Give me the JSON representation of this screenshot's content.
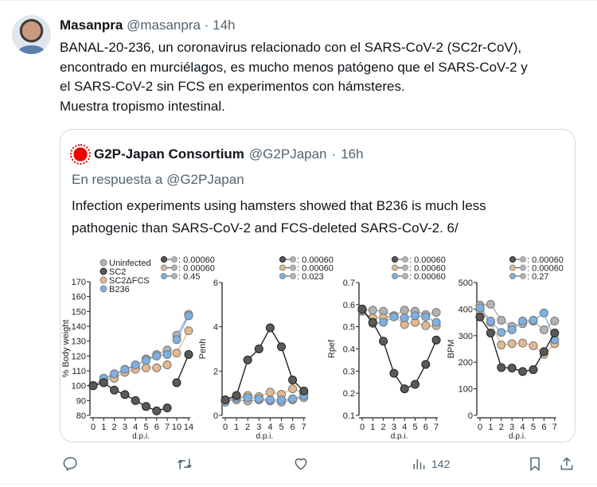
{
  "tweet": {
    "author_name": "Masanpra",
    "author_handle": "@masanpra",
    "separator": "·",
    "time": "14h",
    "text_lines": [
      "BANAL-20-236, un coronavirus relacionado con el SARS-CoV-2 (SC2r-CoV),",
      "encontrado en murciélagos, es mucho menos patógeno que el SARS-CoV-2 y",
      "el SARS-CoV-2 sin FCS en experimentos con hámsteres.",
      "Muestra tropismo intestinal."
    ]
  },
  "quoted": {
    "author_name": "G2P-Japan Consortium",
    "author_handle": "@G2PJapan",
    "separator": "·",
    "time": "16h",
    "reply_to": "En respuesta a @G2PJapan",
    "text_lines": [
      "Infection experiments using hamsters showed that B236 is much less",
      "pathogenic than SARS-CoV-2 and FCS-deleted SARS-CoV-2. 6/"
    ]
  },
  "actions": {
    "reply_icon": "speech-bubble-icon",
    "retweet_icon": "retweet-arrows-icon",
    "like_icon": "heart-icon",
    "views_icon": "bar-chart-icon",
    "views_count": "142",
    "bookmark_icon": "bookmark-icon",
    "share_icon": "upload-share-icon"
  },
  "chart_data": [
    {
      "type": "line",
      "ylabel": "% Body weight",
      "xlabel": "d.p.i.",
      "x": [
        0,
        1,
        2,
        3,
        4,
        5,
        6,
        7,
        10,
        14
      ],
      "x_tick_labels": [
        "0",
        "1",
        "2",
        "3",
        "4",
        "5",
        "6",
        "7",
        "10",
        "14"
      ],
      "ylim": [
        80,
        170
      ],
      "y_ticks": [
        80,
        90,
        100,
        110,
        120,
        130,
        140,
        150,
        160,
        170
      ],
      "legend": [
        "Uninfected",
        "SC2",
        "SC2ΔFCS",
        "B236"
      ],
      "p_values": [
        "0.00060",
        "0.00060",
        "0.45"
      ],
      "series": [
        {
          "name": "Uninfected",
          "color": "#b3b3b3",
          "values": [
            100,
            105,
            107,
            111,
            113,
            118,
            121,
            124,
            134,
            148
          ]
        },
        {
          "name": "SC2",
          "color": "#5a5a5a",
          "values": [
            100,
            102,
            97,
            94,
            90,
            86,
            83,
            85,
            102,
            121
          ]
        },
        {
          "name": "SC2ΔFCS",
          "color": "#e2b98f",
          "values": [
            100,
            104,
            105,
            109,
            111,
            112,
            112,
            114,
            122,
            137
          ]
        },
        {
          "name": "B236",
          "color": "#7db0e3",
          "values": [
            100,
            105,
            108,
            111,
            114,
            117,
            120,
            121,
            131,
            147
          ]
        }
      ]
    },
    {
      "type": "line",
      "ylabel": "Penh",
      "xlabel": "d.p.i.",
      "x": [
        0,
        1,
        2,
        3,
        4,
        5,
        6,
        7
      ],
      "x_tick_labels": [
        "0",
        "1",
        "2",
        "3",
        "4",
        "5",
        "6",
        "7"
      ],
      "ylim": [
        0,
        6
      ],
      "y_ticks": [
        0,
        2,
        4,
        6
      ],
      "p_values": [
        "0.00060",
        "0.00060",
        "0.023"
      ],
      "series": [
        {
          "name": "Uninfected",
          "color": "#b3b3b3",
          "values": [
            0.65,
            0.7,
            0.65,
            0.7,
            0.65,
            0.6,
            0.7,
            0.8
          ]
        },
        {
          "name": "SC2",
          "color": "#5a5a5a",
          "values": [
            0.7,
            0.9,
            2.5,
            3.0,
            3.95,
            3.1,
            1.6,
            1.1
          ]
        },
        {
          "name": "SC2ΔFCS",
          "color": "#e2b98f",
          "values": [
            0.65,
            0.8,
            0.9,
            0.85,
            1.05,
            0.95,
            1.2,
            1.0
          ]
        },
        {
          "name": "B236",
          "color": "#7db0e3",
          "values": [
            0.6,
            0.8,
            0.8,
            0.75,
            0.7,
            0.7,
            0.75,
            0.9
          ]
        }
      ]
    },
    {
      "type": "line",
      "ylabel": "Rpef",
      "xlabel": "d.p.i.",
      "x": [
        0,
        1,
        2,
        3,
        4,
        5,
        6,
        7
      ],
      "x_tick_labels": [
        "0",
        "1",
        "2",
        "3",
        "4",
        "5",
        "6",
        "7"
      ],
      "ylim": [
        0.1,
        0.7
      ],
      "y_ticks": [
        0.1,
        0.2,
        0.3,
        0.4,
        0.5,
        0.6,
        0.7
      ],
      "p_values": [
        "0.00060",
        "0.00060",
        "0.00060"
      ],
      "series": [
        {
          "name": "Uninfected",
          "color": "#b3b3b3",
          "values": [
            0.58,
            0.575,
            0.57,
            0.55,
            0.575,
            0.57,
            0.555,
            0.565
          ]
        },
        {
          "name": "SC2",
          "color": "#5a5a5a",
          "values": [
            0.58,
            0.52,
            0.435,
            0.29,
            0.22,
            0.24,
            0.33,
            0.44
          ]
        },
        {
          "name": "SC2ΔFCS",
          "color": "#e2b98f",
          "values": [
            0.57,
            0.54,
            0.54,
            0.55,
            0.51,
            0.52,
            0.505,
            0.505
          ]
        },
        {
          "name": "B236",
          "color": "#7db0e3",
          "values": [
            0.575,
            0.515,
            0.52,
            0.545,
            0.54,
            0.55,
            0.545,
            0.52
          ]
        }
      ]
    },
    {
      "type": "line",
      "ylabel": "BPM",
      "xlabel": "d.p.i.",
      "x": [
        0,
        1,
        2,
        3,
        4,
        5,
        6,
        7
      ],
      "x_tick_labels": [
        "0",
        "1",
        "2",
        "3",
        "4",
        "5",
        "6",
        "7"
      ],
      "ylim": [
        0,
        500
      ],
      "y_ticks": [
        0,
        100,
        200,
        300,
        400,
        500
      ],
      "p_values": [
        "0.00060",
        "0.00060",
        "0.27"
      ],
      "series": [
        {
          "name": "Uninfected",
          "color": "#b3b3b3",
          "values": [
            415,
            418,
            358,
            335,
            345,
            355,
            322,
            355
          ]
        },
        {
          "name": "SC2",
          "color": "#5a5a5a",
          "values": [
            370,
            310,
            180,
            178,
            165,
            172,
            240,
            310
          ]
        },
        {
          "name": "SC2ΔFCS",
          "color": "#e2b98f",
          "values": [
            395,
            350,
            265,
            270,
            272,
            262,
            230,
            270
          ]
        },
        {
          "name": "B236",
          "color": "#7db0e3",
          "values": [
            405,
            355,
            312,
            322,
            355,
            358,
            385,
            285
          ]
        }
      ]
    }
  ]
}
